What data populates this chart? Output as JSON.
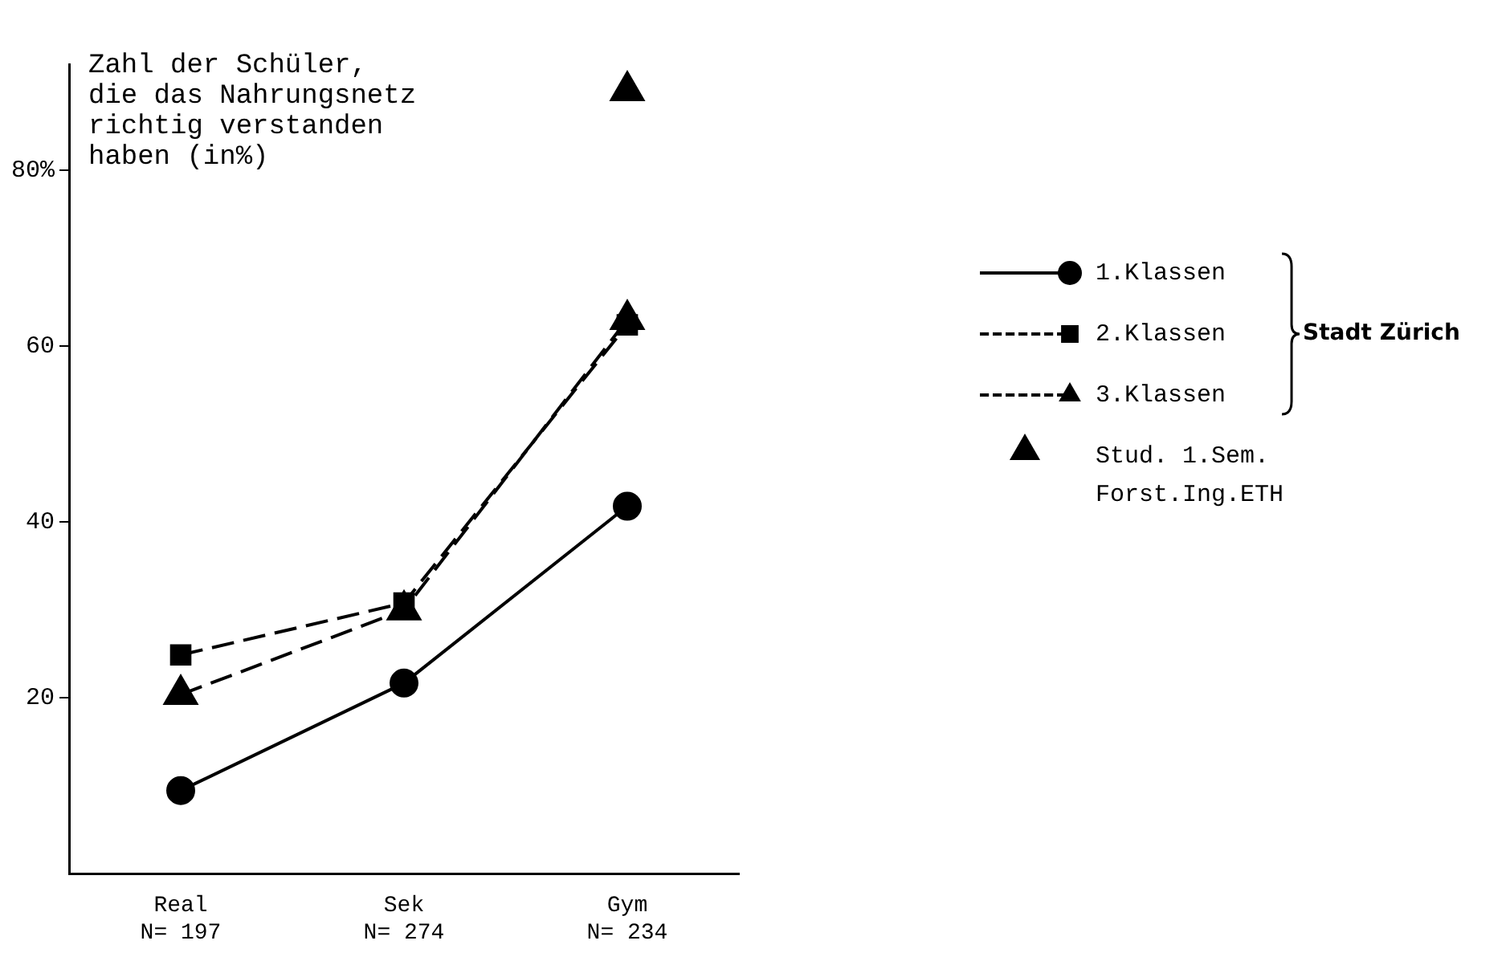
{
  "chart_data": {
    "type": "line",
    "ylabel": "Zahl der Schüler, die das Nahrungsnetz richtig verstanden haben (in%)",
    "categories": [
      "Real\nN= 197",
      "Sek\nN= 274",
      "Gym\nN= 234"
    ],
    "ylim": [
      0,
      92
    ],
    "yticks": [
      20,
      40,
      60,
      {
        "value": 80,
        "label": "80%"
      }
    ],
    "grid": false,
    "legend": "right",
    "series": [
      {
        "name": "1.Klassen",
        "color": "#000000",
        "marker": "circle",
        "line_style": "solid",
        "values": [
          9.5,
          21.7,
          41.8
        ]
      },
      {
        "name": "2.Klassen",
        "color": "#000000",
        "marker": "square",
        "line_style": "dashed",
        "values": [
          24.9,
          30.8,
          62.4
        ]
      },
      {
        "name": "3.Klassen",
        "color": "#000000",
        "marker": "triangle",
        "line_style": "dashed",
        "values": [
          20.4,
          30,
          63
        ]
      },
      {
        "name": "Stud. 1.Sem. Forst.Ing.ETH",
        "type": "scatter",
        "color": "#000000",
        "marker": "triangle",
        "x": [
          "Gym\nN= 234"
        ],
        "values": [
          89
        ]
      }
    ],
    "annotations": [
      "Stadt Zürich"
    ]
  }
}
